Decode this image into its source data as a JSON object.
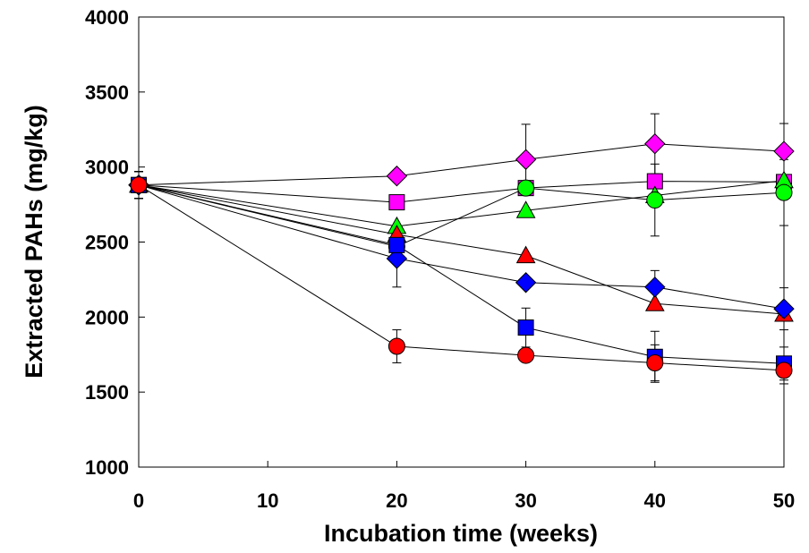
{
  "chart_data": {
    "type": "scatter",
    "title": "",
    "xlabel": "Incubation time (weeks)",
    "ylabel": "Extracted PAHs (mg/kg)",
    "xlim": [
      0,
      50
    ],
    "ylim": [
      1000,
      4000
    ],
    "xticks": [
      0,
      10,
      20,
      30,
      40,
      50
    ],
    "yticks": [
      1000,
      1500,
      2000,
      2500,
      3000,
      3500,
      4000
    ],
    "grid": false,
    "x": [
      0,
      20,
      30,
      40,
      50
    ],
    "series": [
      {
        "marker": "diamond",
        "color": "#ff00ff",
        "values": [
          2880,
          2940,
          3050,
          3155,
          3105
        ],
        "errors": [
          90,
          0,
          235,
          200,
          185
        ]
      },
      {
        "marker": "square",
        "color": "#ff00ff",
        "values": [
          2880,
          2765,
          2860,
          2905,
          2900
        ],
        "errors": [
          90,
          0,
          0,
          0,
          0
        ]
      },
      {
        "marker": "triangle",
        "color": "#00ff00",
        "values": [
          2880,
          2605,
          2710,
          2810,
          2910
        ],
        "errors": [
          90,
          0,
          0,
          0,
          0
        ]
      },
      {
        "marker": "circle",
        "color": "#00ff00",
        "values": [
          2880,
          2470,
          2860,
          2780,
          2830
        ],
        "errors": [
          90,
          0,
          0,
          240,
          220
        ]
      },
      {
        "marker": "triangle",
        "color": "#ff0000",
        "values": [
          2880,
          2550,
          2410,
          2090,
          2020
        ],
        "errors": [
          90,
          0,
          0,
          0,
          0
        ]
      },
      {
        "marker": "diamond",
        "color": "#0000ff",
        "values": [
          2880,
          2390,
          2230,
          2200,
          2055
        ],
        "errors": [
          90,
          190,
          0,
          110,
          140
        ]
      },
      {
        "marker": "square",
        "color": "#0000ff",
        "values": [
          2880,
          2480,
          1930,
          1735,
          1690
        ],
        "errors": [
          90,
          0,
          130,
          170,
          110
        ]
      },
      {
        "marker": "circle",
        "color": "#ff0000",
        "values": [
          2880,
          1805,
          1745,
          1695,
          1645
        ],
        "errors": [
          90,
          110,
          0,
          120,
          90
        ]
      }
    ]
  }
}
